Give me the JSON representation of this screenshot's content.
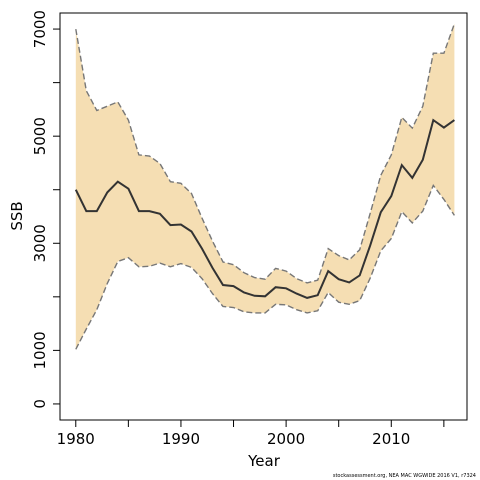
{
  "chart_data": {
    "type": "line",
    "title": "",
    "xlabel": "Year",
    "ylabel": "SSB",
    "xlim": [
      1978.5,
      2017.2
    ],
    "ylim": [
      -300,
      7300
    ],
    "x_ticks": [
      1980,
      1990,
      2000,
      2010
    ],
    "y_ticks": [
      0,
      1000,
      3000,
      5000,
      7000
    ],
    "grid": false,
    "legend": "none",
    "colors": {
      "band": "#f5deb3",
      "line": "#333333",
      "bound": "#777777"
    },
    "x": [
      1980,
      1981,
      1982,
      1983,
      1984,
      1985,
      1986,
      1987,
      1988,
      1989,
      1990,
      1991,
      1992,
      1993,
      1994,
      1995,
      1996,
      1997,
      1998,
      1999,
      2000,
      2001,
      2002,
      2003,
      2004,
      2005,
      2006,
      2007,
      2008,
      2009,
      2010,
      2011,
      2012,
      2013,
      2014,
      2015,
      2016
    ],
    "series": [
      {
        "role": "estimate",
        "values": [
          4000,
          3600,
          3600,
          3950,
          4150,
          4020,
          3600,
          3600,
          3550,
          3340,
          3350,
          3220,
          2900,
          2540,
          2220,
          2200,
          2080,
          2020,
          2010,
          2180,
          2160,
          2060,
          1980,
          2030,
          2480,
          2330,
          2270,
          2400,
          2960,
          3580,
          3880,
          4460,
          4220,
          4560,
          5300,
          5160,
          5300
        ]
      },
      {
        "role": "upper",
        "values": [
          7000,
          5850,
          5480,
          5560,
          5640,
          5300,
          4650,
          4630,
          4490,
          4150,
          4120,
          3930,
          3470,
          3040,
          2650,
          2600,
          2450,
          2360,
          2330,
          2530,
          2480,
          2340,
          2260,
          2310,
          2900,
          2770,
          2690,
          2880,
          3560,
          4270,
          4650,
          5350,
          5150,
          5560,
          6550,
          6550,
          7100
        ]
      },
      {
        "role": "lower",
        "values": [
          1020,
          1400,
          1760,
          2250,
          2660,
          2730,
          2560,
          2570,
          2630,
          2560,
          2620,
          2550,
          2340,
          2060,
          1820,
          1800,
          1720,
          1700,
          1700,
          1860,
          1850,
          1760,
          1700,
          1740,
          2080,
          1900,
          1860,
          1930,
          2350,
          2860,
          3090,
          3590,
          3380,
          3600,
          4080,
          3820,
          3520
        ]
      }
    ]
  },
  "footer": {
    "credit": "stockassessment.org, NEA MAC WGWIDE 2016 V1, r7324"
  }
}
